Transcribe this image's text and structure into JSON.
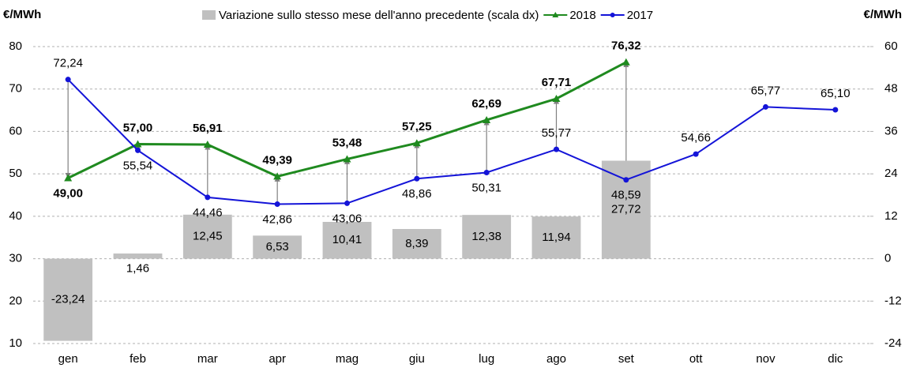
{
  "chart_data": {
    "type": "bar-line",
    "y_label": "€/MWh",
    "y2_label": "€/MWh",
    "categories": [
      "gen",
      "feb",
      "mar",
      "apr",
      "mag",
      "giu",
      "lug",
      "ago",
      "set",
      "ott",
      "nov",
      "dic"
    ],
    "ylim": [
      10,
      80
    ],
    "yticks": [
      10,
      20,
      30,
      40,
      50,
      60,
      70,
      80
    ],
    "y2lim": [
      -24,
      60
    ],
    "y2ticks": [
      -24,
      -12,
      0,
      12,
      24,
      36,
      48,
      60
    ],
    "grid": true,
    "series": [
      {
        "name": "Variazione sullo stesso mese dell'anno precedente (scala dx)",
        "type": "bar",
        "axis": "y2",
        "color": "#c0c0c0",
        "values": [
          -23.24,
          1.46,
          12.45,
          6.53,
          10.41,
          8.39,
          12.38,
          11.94,
          27.72,
          null,
          null,
          null
        ],
        "value_labels": [
          "-23,24",
          "1,46",
          "12,45",
          "6,53",
          "10,41",
          "8,39",
          "12,38",
          "11,94",
          "27,72",
          null,
          null,
          null
        ]
      },
      {
        "name": "2018",
        "type": "line",
        "color": "#1f8a1f",
        "values": [
          49.0,
          57.0,
          56.91,
          49.39,
          53.48,
          57.25,
          62.69,
          67.71,
          76.32,
          null,
          null,
          null
        ],
        "value_labels": [
          "49,00",
          "57,00",
          "56,91",
          "49,39",
          "53,48",
          "57,25",
          "62,69",
          "67,71",
          "76,32",
          null,
          null,
          null
        ]
      },
      {
        "name": "2017",
        "type": "line",
        "color": "#1414d8",
        "values": [
          72.24,
          55.54,
          44.46,
          42.86,
          43.06,
          48.86,
          50.31,
          55.77,
          48.59,
          54.66,
          65.77,
          65.1
        ],
        "value_labels": [
          "72,24",
          "55,54",
          "44,46",
          "42,86",
          "43,06",
          "48,86",
          "50,31",
          "55,77",
          "48,59",
          "54,66",
          "65,77",
          "65,10"
        ]
      }
    ]
  }
}
